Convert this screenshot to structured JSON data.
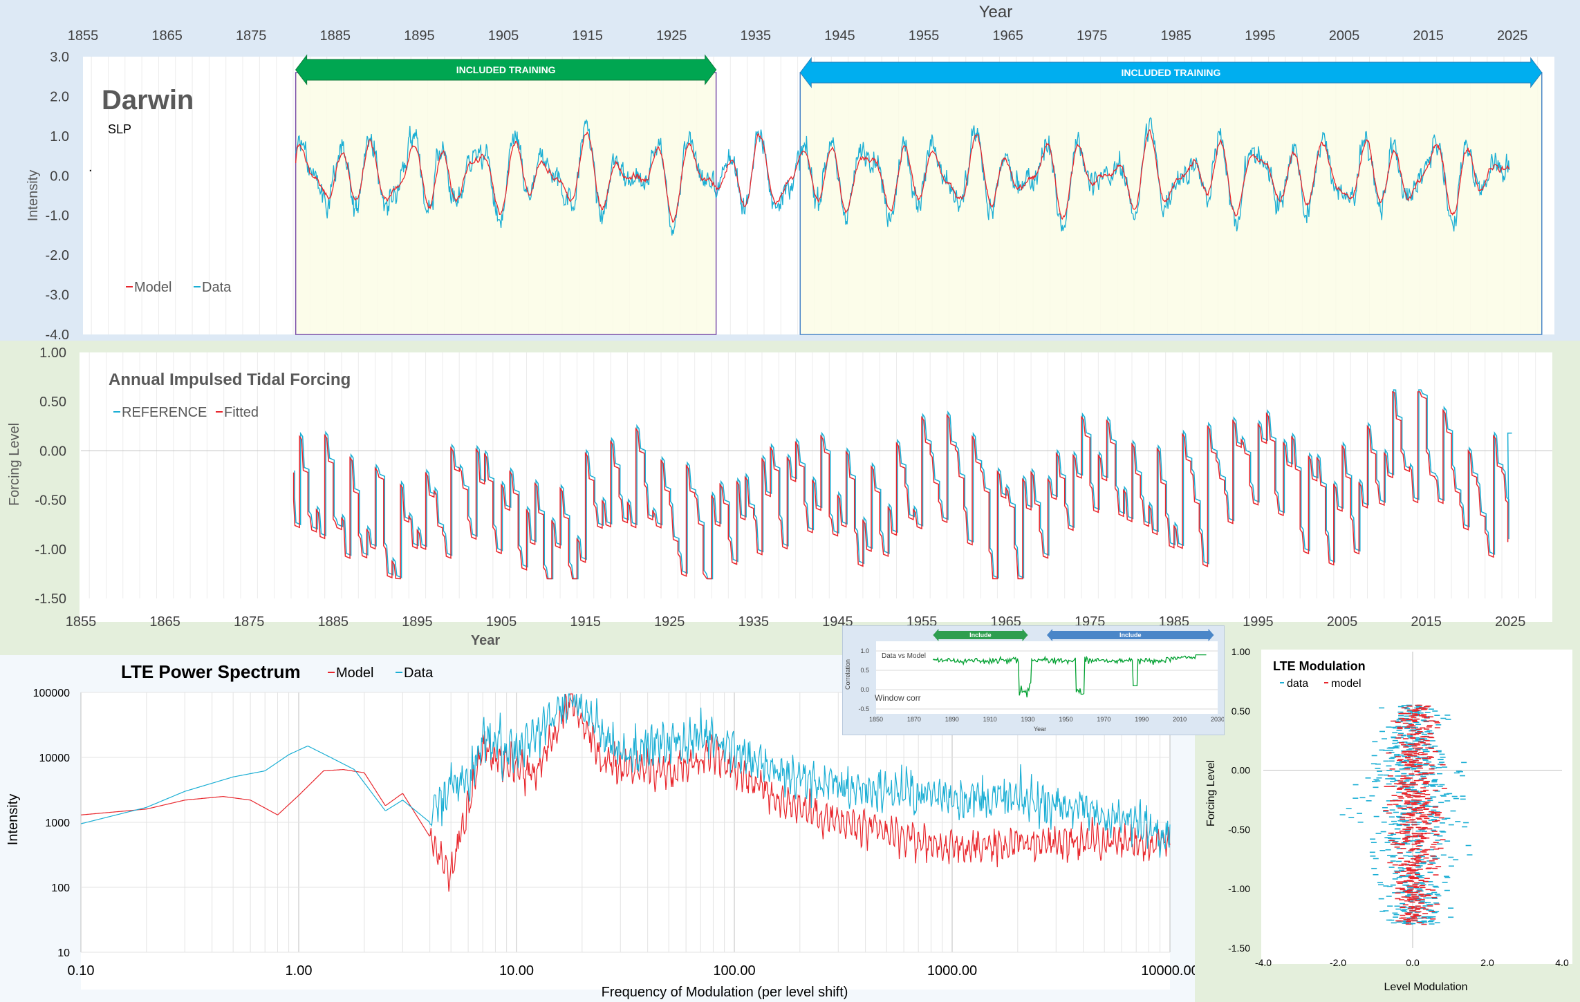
{
  "colors": {
    "model": "#e8262c",
    "data": "#1aaed4",
    "training_green": "#00a651",
    "training_blue": "#00aeef",
    "include_green": "#2e9e4f",
    "include_blue": "#4a86c8",
    "training_fill": "#fbfde6",
    "window_corr": "#00a030"
  },
  "top_chart": {
    "title": "Darwin",
    "subtitle": "SLP",
    "dot": ".",
    "axis_title_top": "Year",
    "ylabel": "Intensity",
    "training_label_1": "INCLUDED TRAINING",
    "training_label_2": "INCLUDED TRAINING",
    "legend": {
      "model": "Model",
      "data": "Data"
    }
  },
  "forcing_chart": {
    "title": "Annual Impulsed Tidal Forcing",
    "ylabel": "Forcing Level",
    "xlabel": "Year",
    "legend": {
      "reference": "REFERENCE",
      "fitted": "Fitted"
    }
  },
  "spectrum_chart": {
    "title": "LTE Power Spectrum",
    "ylabel": "Intensity",
    "xlabel": "Frequency of Modulation (per level shift)",
    "legend": {
      "model": "Model",
      "data": "Data"
    }
  },
  "modulation_chart": {
    "title": "LTE Modulation",
    "xlabel": "Level Modulation",
    "ylabel": "Forcing Level",
    "legend": {
      "data": "data",
      "model": "model"
    }
  },
  "inset_chart": {
    "include_label_1": "Include",
    "include_label_2": "Include",
    "series_label": "Data vs Model",
    "window_label": "Window corr",
    "ylabel": "Correlation",
    "xlabel": "Year"
  },
  "chart_data": [
    {
      "type": "line",
      "name": "darwin-slp",
      "title": "Darwin",
      "subtitle": "SLP",
      "xlabel": "Year",
      "ylabel": "Intensity",
      "x_ticks": [
        1855,
        1865,
        1875,
        1885,
        1895,
        1905,
        1915,
        1925,
        1935,
        1945,
        1955,
        1965,
        1975,
        1985,
        1995,
        2005,
        2015,
        2025
      ],
      "y_ticks": [
        "3.0",
        "2.0",
        "1.0",
        "0.0",
        "-1.0",
        "-2.0",
        "-3.0",
        "-4.0"
      ],
      "xlim": [
        1855,
        2030
      ],
      "ylim": [
        -4,
        3
      ],
      "training_intervals": [
        [
          1880.3,
          1930.3
        ],
        [
          1940.3,
          2028.5
        ]
      ],
      "data_range": [
        1880.3,
        2024.7
      ],
      "series": [
        {
          "name": "Model",
          "amplitude": 0.7,
          "noise": 0.15
        },
        {
          "name": "Data",
          "amplitude": 1.0,
          "noise": 0.45
        }
      ],
      "legend_position": "bottom-left"
    },
    {
      "type": "line",
      "name": "annual-impulsed-tidal-forcing",
      "title": "Annual Impulsed Tidal Forcing",
      "xlabel": "Year",
      "ylabel": "Forcing Level",
      "x_ticks": [
        1855,
        1865,
        1875,
        1885,
        1895,
        1905,
        1915,
        1925,
        1935,
        1945,
        1955,
        1965,
        1975,
        1985,
        1995,
        2005,
        2015,
        2025
      ],
      "y_ticks": [
        "1.00",
        "0.50",
        "0.00",
        "-0.50",
        "-1.00",
        "-1.50"
      ],
      "xlim": [
        1855,
        2030
      ],
      "ylim": [
        -1.5,
        1.0
      ],
      "data_range": [
        1880.3,
        2024.7
      ],
      "series": [
        {
          "name": "REFERENCE"
        },
        {
          "name": "Fitted"
        }
      ],
      "legend_position": "top-left"
    },
    {
      "type": "line",
      "name": "lte-power-spectrum",
      "title": "LTE Power Spectrum",
      "xlabel": "Frequency of Modulation (per level shift)",
      "ylabel": "Intensity",
      "x_scale": "log",
      "y_scale": "log",
      "x_ticks": [
        "0.10",
        "1.00",
        "10.00",
        "100.00",
        "1000.00",
        "10000.00"
      ],
      "y_ticks": [
        "100000",
        "10000",
        "1000",
        "100",
        "10"
      ],
      "xlim": [
        0.1,
        10000
      ],
      "ylim": [
        10,
        100000
      ],
      "series": [
        {
          "name": "Model",
          "points": [
            [
              0.1,
              1300
            ],
            [
              0.2,
              1600
            ],
            [
              0.3,
              2200
            ],
            [
              0.45,
              2500
            ],
            [
              0.6,
              2200
            ],
            [
              0.8,
              1300
            ],
            [
              1.0,
              2600
            ],
            [
              1.3,
              6200
            ],
            [
              1.6,
              6500
            ],
            [
              2.0,
              5800
            ],
            [
              2.5,
              1800
            ],
            [
              3.0,
              2800
            ],
            [
              4.0,
              600
            ],
            [
              5.0,
              150
            ],
            [
              6.0,
              1800
            ],
            [
              7.0,
              14000
            ],
            [
              9.0,
              9000
            ],
            [
              12.0,
              5500
            ],
            [
              18.0,
              80000
            ],
            [
              25.0,
              8000
            ],
            [
              50.0,
              6000
            ],
            [
              80.0,
              12000
            ],
            [
              150.0,
              2500
            ],
            [
              300.0,
              1000
            ],
            [
              1000.0,
              400
            ],
            [
              3000.0,
              500
            ],
            [
              10000.0,
              500
            ]
          ]
        },
        {
          "name": "Data",
          "points": [
            [
              0.1,
              950
            ],
            [
              0.2,
              1700
            ],
            [
              0.3,
              3000
            ],
            [
              0.5,
              5000
            ],
            [
              0.7,
              6200
            ],
            [
              0.9,
              11000
            ],
            [
              1.1,
              15000
            ],
            [
              1.4,
              10000
            ],
            [
              1.8,
              6500
            ],
            [
              2.5,
              1500
            ],
            [
              3.0,
              2200
            ],
            [
              4.0,
              1000
            ],
            [
              5.0,
              4000
            ],
            [
              6.0,
              3500
            ],
            [
              7.0,
              20000
            ],
            [
              10.0,
              12000
            ],
            [
              18.0,
              80000
            ],
            [
              30.0,
              12000
            ],
            [
              80.0,
              22000
            ],
            [
              150.0,
              6000
            ],
            [
              300.0,
              3500
            ],
            [
              1000.0,
              2500
            ],
            [
              3000.0,
              2000
            ],
            [
              10000.0,
              700
            ]
          ]
        }
      ],
      "legend_position": "top-center"
    },
    {
      "type": "scatter",
      "name": "lte-modulation",
      "title": "LTE Modulation",
      "xlabel": "Level Modulation",
      "ylabel": "Forcing Level",
      "x_ticks": [
        "-4.0",
        "-2.0",
        "0.0",
        "2.0",
        "4.0"
      ],
      "y_ticks": [
        "1.00",
        "0.50",
        "0.00",
        "-0.50",
        "-1.00",
        "-1.50"
      ],
      "xlim": [
        -4,
        4
      ],
      "ylim": [
        -1.5,
        1.0
      ],
      "series": [
        {
          "name": "data",
          "x_spread": 1.6
        },
        {
          "name": "model",
          "x_spread": 0.9
        }
      ],
      "legend_position": "top-left"
    },
    {
      "type": "line",
      "name": "window-correlation",
      "xlabel": "Year",
      "ylabel": "Correlation",
      "x_ticks": [
        "1850",
        "1870",
        "1890",
        "1910",
        "1930",
        "1950",
        "1970",
        "1990",
        "2010",
        "2030"
      ],
      "y_ticks": [
        "1.0",
        "0.5",
        "0.0",
        "-0.5"
      ],
      "xlim": [
        1850,
        2030
      ],
      "ylim": [
        -0.5,
        1.0
      ],
      "include_intervals": [
        [
          1880,
          1930
        ],
        [
          1940,
          2028
        ]
      ],
      "series": [
        {
          "name": "Data vs Model",
          "range": [
            1880,
            2024
          ],
          "typical": 0.75
        }
      ]
    }
  ]
}
